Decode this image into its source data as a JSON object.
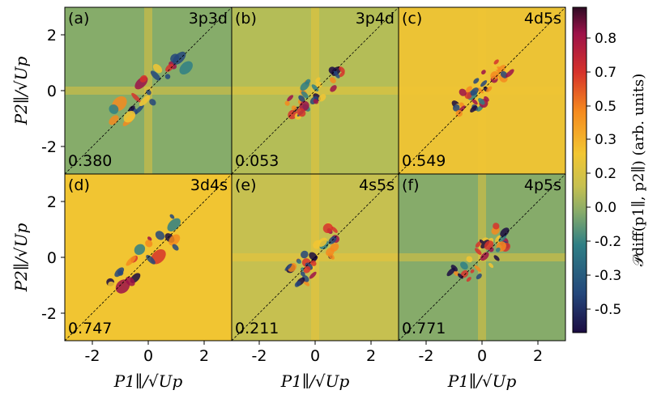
{
  "chart_data": {
    "type": "heatmap",
    "title": "",
    "xlabel": "P1∥/√Up",
    "ylabel": "P2∥/√Up",
    "xlim": [
      -3,
      3
    ],
    "ylim": [
      -3,
      3
    ],
    "xticks": [
      "-2",
      "0",
      "2"
    ],
    "yticks": [
      "2",
      "0",
      "-2"
    ],
    "colorbar": {
      "label": "𝒫diff(p1∥, p2∥) (arb. units)",
      "range": [
        -0.6,
        0.9
      ],
      "ticks": [
        "0.8",
        "0.7",
        "0.5",
        "0.3",
        "0.2",
        "0.0",
        "-0.2",
        "-0.3",
        "-0.5"
      ]
    },
    "panels": [
      {
        "id": "(a)",
        "label": "3p3d",
        "value": "0.380",
        "bg": "#86ac6a"
      },
      {
        "id": "(b)",
        "label": "3p4d",
        "value": "0.053",
        "bg": "#b4bd57"
      },
      {
        "id": "(c)",
        "label": "4d5s",
        "value": "0.549",
        "bg": "#ecc335"
      },
      {
        "id": "(d)",
        "label": "3d4s",
        "value": "0.747",
        "bg": "#f1c532"
      },
      {
        "id": "(e)",
        "label": "4s5s",
        "value": "0.211",
        "bg": "#c6c050"
      },
      {
        "id": "(f)",
        "label": "4p5s",
        "value": "0.771",
        "bg": "#86ab6a"
      }
    ]
  }
}
